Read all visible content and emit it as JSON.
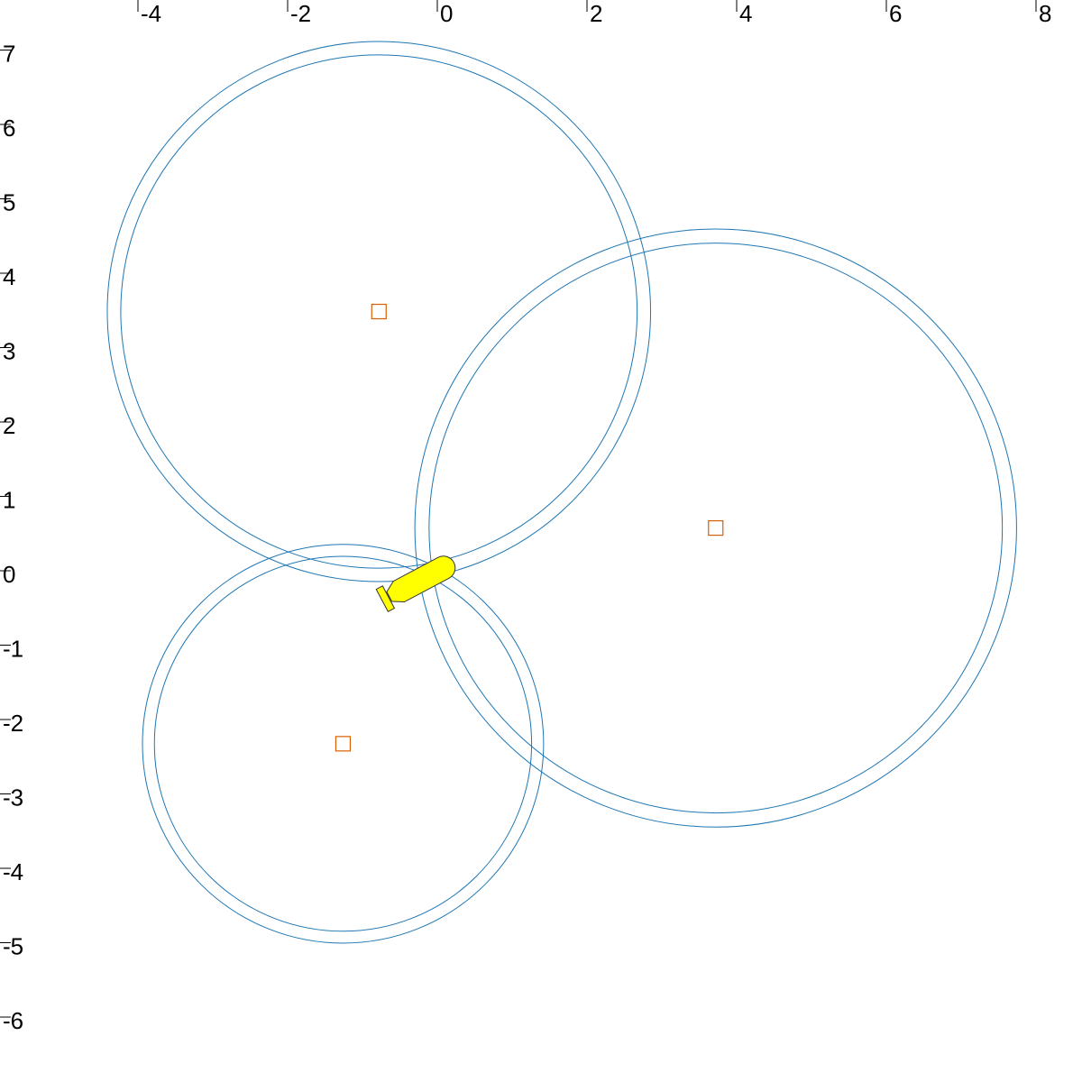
{
  "chart_data": {
    "type": "scatter",
    "title": "",
    "xlabel": "",
    "ylabel": "",
    "xlim": [
      -4.2,
      8.0
    ],
    "ylim": [
      -6.2,
      7.2
    ],
    "grid": false,
    "legend": "none",
    "x_ticks": [
      -4,
      -2,
      0,
      2,
      4,
      6,
      8
    ],
    "y_ticks": [
      7,
      6,
      5,
      4,
      3,
      2,
      1,
      0,
      -1,
      -2,
      -3,
      -4,
      -5,
      -6
    ],
    "x_tick_labels": [
      "-4",
      "-2",
      "0",
      "2",
      "4",
      "6",
      "8"
    ],
    "y_tick_labels": [
      "7",
      "6",
      "5",
      "4",
      "3",
      "2",
      "1",
      "0",
      "-1",
      "-2",
      "-3",
      "-4",
      "-5",
      "-6"
    ],
    "anchors": [
      {
        "x": -0.78,
        "y": 3.63,
        "r_inner": 3.45,
        "r_outer": 3.63
      },
      {
        "x": 3.72,
        "y": 0.72,
        "r_inner": 3.83,
        "r_outer": 4.02
      },
      {
        "x": -1.26,
        "y": -2.18,
        "r_inner": 2.52,
        "r_outer": 2.68
      }
    ],
    "vehicle": {
      "x": -0.45,
      "y": -0.1,
      "heading_deg": 28
    }
  },
  "colors": {
    "circle": "#1f77b4",
    "anchor_marker": "#d95f02",
    "vehicle_fill": "#ffff00",
    "vehicle_stroke": "#333333",
    "axis": "#000000"
  }
}
